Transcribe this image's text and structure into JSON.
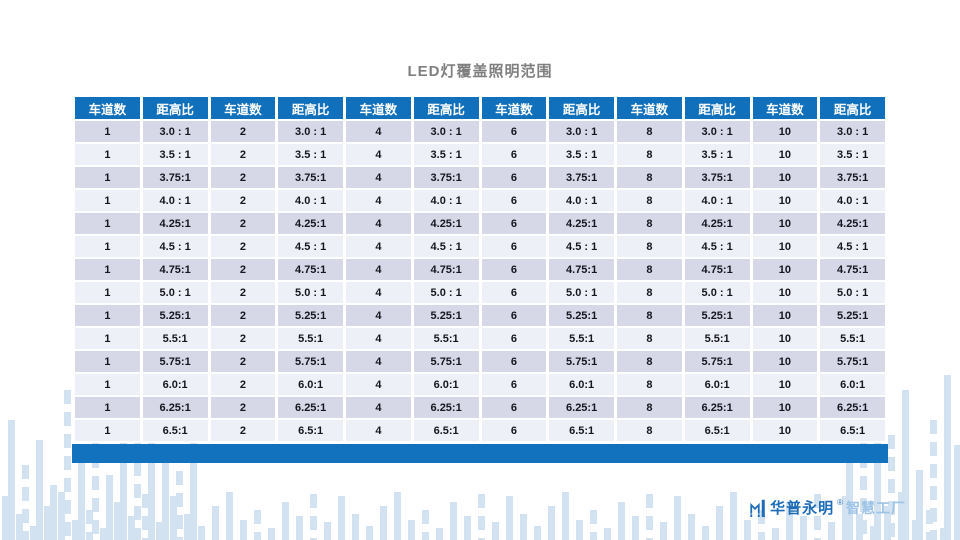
{
  "slide": {
    "title": "LED灯覆盖照明范围"
  },
  "table": {
    "header": [
      "车道数",
      "距高比",
      "车道数",
      "距高比",
      "车道数",
      "距高比",
      "车道数",
      "距高比",
      "车道数",
      "距高比",
      "车道数",
      "距高比"
    ],
    "lane_counts": [
      "1",
      "2",
      "4",
      "6",
      "8",
      "10"
    ],
    "ratio_rows": [
      "3.0 : 1",
      "3.5 : 1",
      "3.75:1",
      "4.0 : 1",
      "4.25:1",
      "4.5 : 1",
      "4.75:1",
      "5.0 : 1",
      "5.25:1",
      "5.5:1",
      "5.75:1",
      "6.0:1",
      "6.25:1",
      "6.5:1"
    ]
  },
  "logo": {
    "brand": "华普永明",
    "trademark": "®",
    "suffix": "智慧工厂"
  },
  "colors": {
    "header_blue": "#1170bb",
    "footer_blue": "#1272bd",
    "row_odd": "#d6d8e8",
    "row_even": "#eef0f7",
    "title_gray": "#7f7f7f",
    "logo_blue": "#1e6cb8",
    "logo_light_blue": "#9dc3e6",
    "deco_bar_blue": "#d3e2f0"
  }
}
